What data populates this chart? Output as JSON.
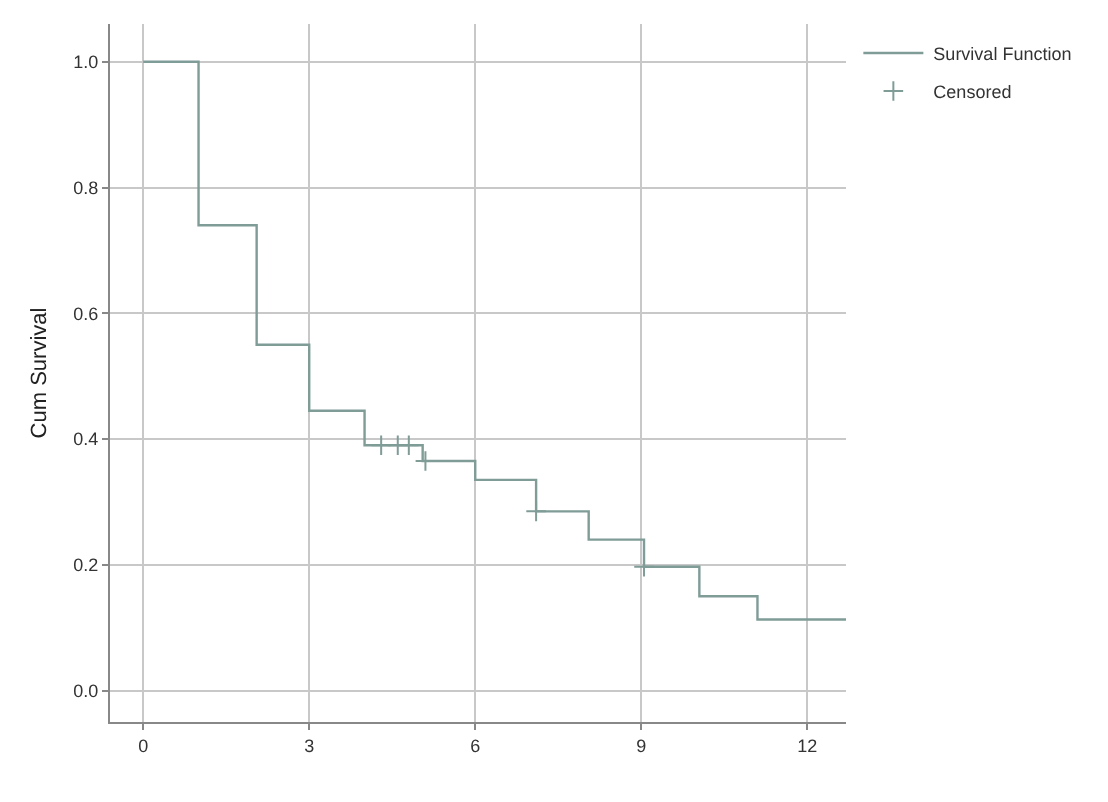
{
  "chart_data": {
    "type": "step",
    "ylabel": "Cum Survival",
    "series": [
      {
        "name": "Survival Function",
        "type": "step",
        "color": "#7f9c97",
        "x": [
          0,
          1.0,
          2.05,
          3.0,
          4.0,
          5.05,
          6.0,
          7.1,
          8.05,
          9.05,
          10.05,
          11.1,
          12.7
        ],
        "values": [
          1,
          0.74,
          0.55,
          0.445,
          0.39,
          0.365,
          0.335,
          0.285,
          0.24,
          0.197,
          0.15,
          0.113,
          0.113
        ]
      },
      {
        "name": "Censored",
        "type": "scatter",
        "marker": "cross",
        "color": "#7f9c97",
        "x": [
          4.3,
          4.6,
          4.8,
          5.1,
          7.1,
          9.05
        ],
        "values": [
          0.39,
          0.39,
          0.39,
          0.365,
          0.285,
          0.197
        ]
      }
    ],
    "xlim": [
      -0.6,
      12.7
    ],
    "xticks": [
      0,
      3,
      6,
      9,
      12
    ],
    "ylim": [
      -0.05,
      1.06
    ],
    "yticks": [
      {
        "value": 0,
        "label": "0.0"
      },
      0.2,
      0.4,
      0.6,
      0.8,
      {
        "value": 1,
        "label": "1.0"
      }
    ],
    "grid": true,
    "legend": "top right"
  }
}
